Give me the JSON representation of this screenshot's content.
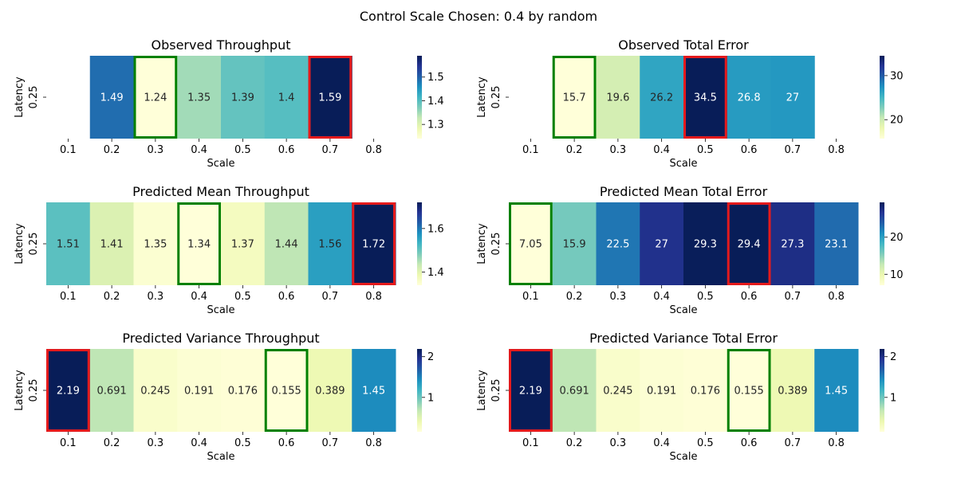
{
  "suptitle": "Control Scale Chosen: 0.4 by random",
  "colors": {
    "min_box": "#008000",
    "max_box": "#e41a1c",
    "cmap": [
      "#ffffd9",
      "#edf8b1",
      "#c7e9b4",
      "#7fcdbb",
      "#41b6c4",
      "#1d91c0",
      "#225ea8",
      "#253494",
      "#081d58"
    ]
  },
  "chart_data": [
    {
      "type": "heatmap",
      "title": "Observed Throughput",
      "xlabel": "Scale",
      "ylabel": "Latency",
      "x_ticks": [
        "0.1",
        "0.2",
        "0.3",
        "0.4",
        "0.5",
        "0.6",
        "0.7",
        "0.8"
      ],
      "y_ticks": [
        "0.25"
      ],
      "values": [
        null,
        1.49,
        1.24,
        1.35,
        1.39,
        1.4,
        1.59,
        null
      ],
      "labels": [
        "",
        "1.49",
        "1.24",
        "1.35",
        "1.39",
        "1.4",
        "1.59",
        ""
      ],
      "vmin": 1.24,
      "vmax": 1.59,
      "colorbar_ticks": [
        "1.3",
        "1.4",
        "1.5"
      ],
      "min_index": 2,
      "max_index": 6
    },
    {
      "type": "heatmap",
      "title": "Observed Total Error",
      "xlabel": "Scale",
      "ylabel": "Latency",
      "x_ticks": [
        "0.1",
        "0.2",
        "0.3",
        "0.4",
        "0.5",
        "0.6",
        "0.7",
        "0.8"
      ],
      "y_ticks": [
        "0.25"
      ],
      "values": [
        null,
        15.7,
        19.6,
        26.2,
        34.5,
        26.8,
        27,
        null
      ],
      "labels": [
        "",
        "15.7",
        "19.6",
        "26.2",
        "34.5",
        "26.8",
        "27",
        ""
      ],
      "vmin": 15.7,
      "vmax": 34.5,
      "colorbar_ticks": [
        "20",
        "30"
      ],
      "min_index": 1,
      "max_index": 4
    },
    {
      "type": "heatmap",
      "title": "Predicted Mean Throughput",
      "xlabel": "Scale",
      "ylabel": "Latency",
      "x_ticks": [
        "0.1",
        "0.2",
        "0.3",
        "0.4",
        "0.5",
        "0.6",
        "0.7",
        "0.8"
      ],
      "y_ticks": [
        "0.25"
      ],
      "values": [
        1.51,
        1.41,
        1.35,
        1.34,
        1.37,
        1.44,
        1.56,
        1.72
      ],
      "labels": [
        "1.51",
        "1.41",
        "1.35",
        "1.34",
        "1.37",
        "1.44",
        "1.56",
        "1.72"
      ],
      "vmin": 1.34,
      "vmax": 1.72,
      "colorbar_ticks": [
        "1.4",
        "1.6"
      ],
      "min_index": 3,
      "max_index": 7
    },
    {
      "type": "heatmap",
      "title": "Predicted Mean Total Error",
      "xlabel": "Scale",
      "ylabel": "Latency",
      "x_ticks": [
        "0.1",
        "0.2",
        "0.3",
        "0.4",
        "0.5",
        "0.6",
        "0.7",
        "0.8"
      ],
      "y_ticks": [
        "0.25"
      ],
      "values": [
        7.05,
        15.9,
        22.5,
        27,
        29.3,
        29.4,
        27.3,
        23.1
      ],
      "labels": [
        "7.05",
        "15.9",
        "22.5",
        "27",
        "29.3",
        "29.4",
        "27.3",
        "23.1"
      ],
      "vmin": 7.05,
      "vmax": 29.4,
      "colorbar_ticks": [
        "10",
        "20"
      ],
      "min_index": 0,
      "max_index": 5
    },
    {
      "type": "heatmap",
      "title": "Predicted Variance Throughput",
      "xlabel": "Scale",
      "ylabel": "Latency",
      "x_ticks": [
        "0.1",
        "0.2",
        "0.3",
        "0.4",
        "0.5",
        "0.6",
        "0.7",
        "0.8"
      ],
      "y_ticks": [
        "0.25"
      ],
      "values": [
        2.19,
        0.691,
        0.245,
        0.191,
        0.176,
        0.155,
        0.389,
        1.45
      ],
      "labels": [
        "2.19",
        "0.691",
        "0.245",
        "0.191",
        "0.176",
        "0.155",
        "0.389",
        "1.45"
      ],
      "vmin": 0.155,
      "vmax": 2.19,
      "colorbar_ticks": [
        "1",
        "2"
      ],
      "min_index": 5,
      "max_index": 0
    },
    {
      "type": "heatmap",
      "title": "Predicted Variance Total Error",
      "xlabel": "Scale",
      "ylabel": "Latency",
      "x_ticks": [
        "0.1",
        "0.2",
        "0.3",
        "0.4",
        "0.5",
        "0.6",
        "0.7",
        "0.8"
      ],
      "y_ticks": [
        "0.25"
      ],
      "values": [
        2.19,
        0.691,
        0.245,
        0.191,
        0.176,
        0.155,
        0.389,
        1.45
      ],
      "labels": [
        "2.19",
        "0.691",
        "0.245",
        "0.191",
        "0.176",
        "0.155",
        "0.389",
        "1.45"
      ],
      "vmin": 0.155,
      "vmax": 2.19,
      "colorbar_ticks": [
        "1",
        "2"
      ],
      "min_index": 5,
      "max_index": 0
    }
  ]
}
